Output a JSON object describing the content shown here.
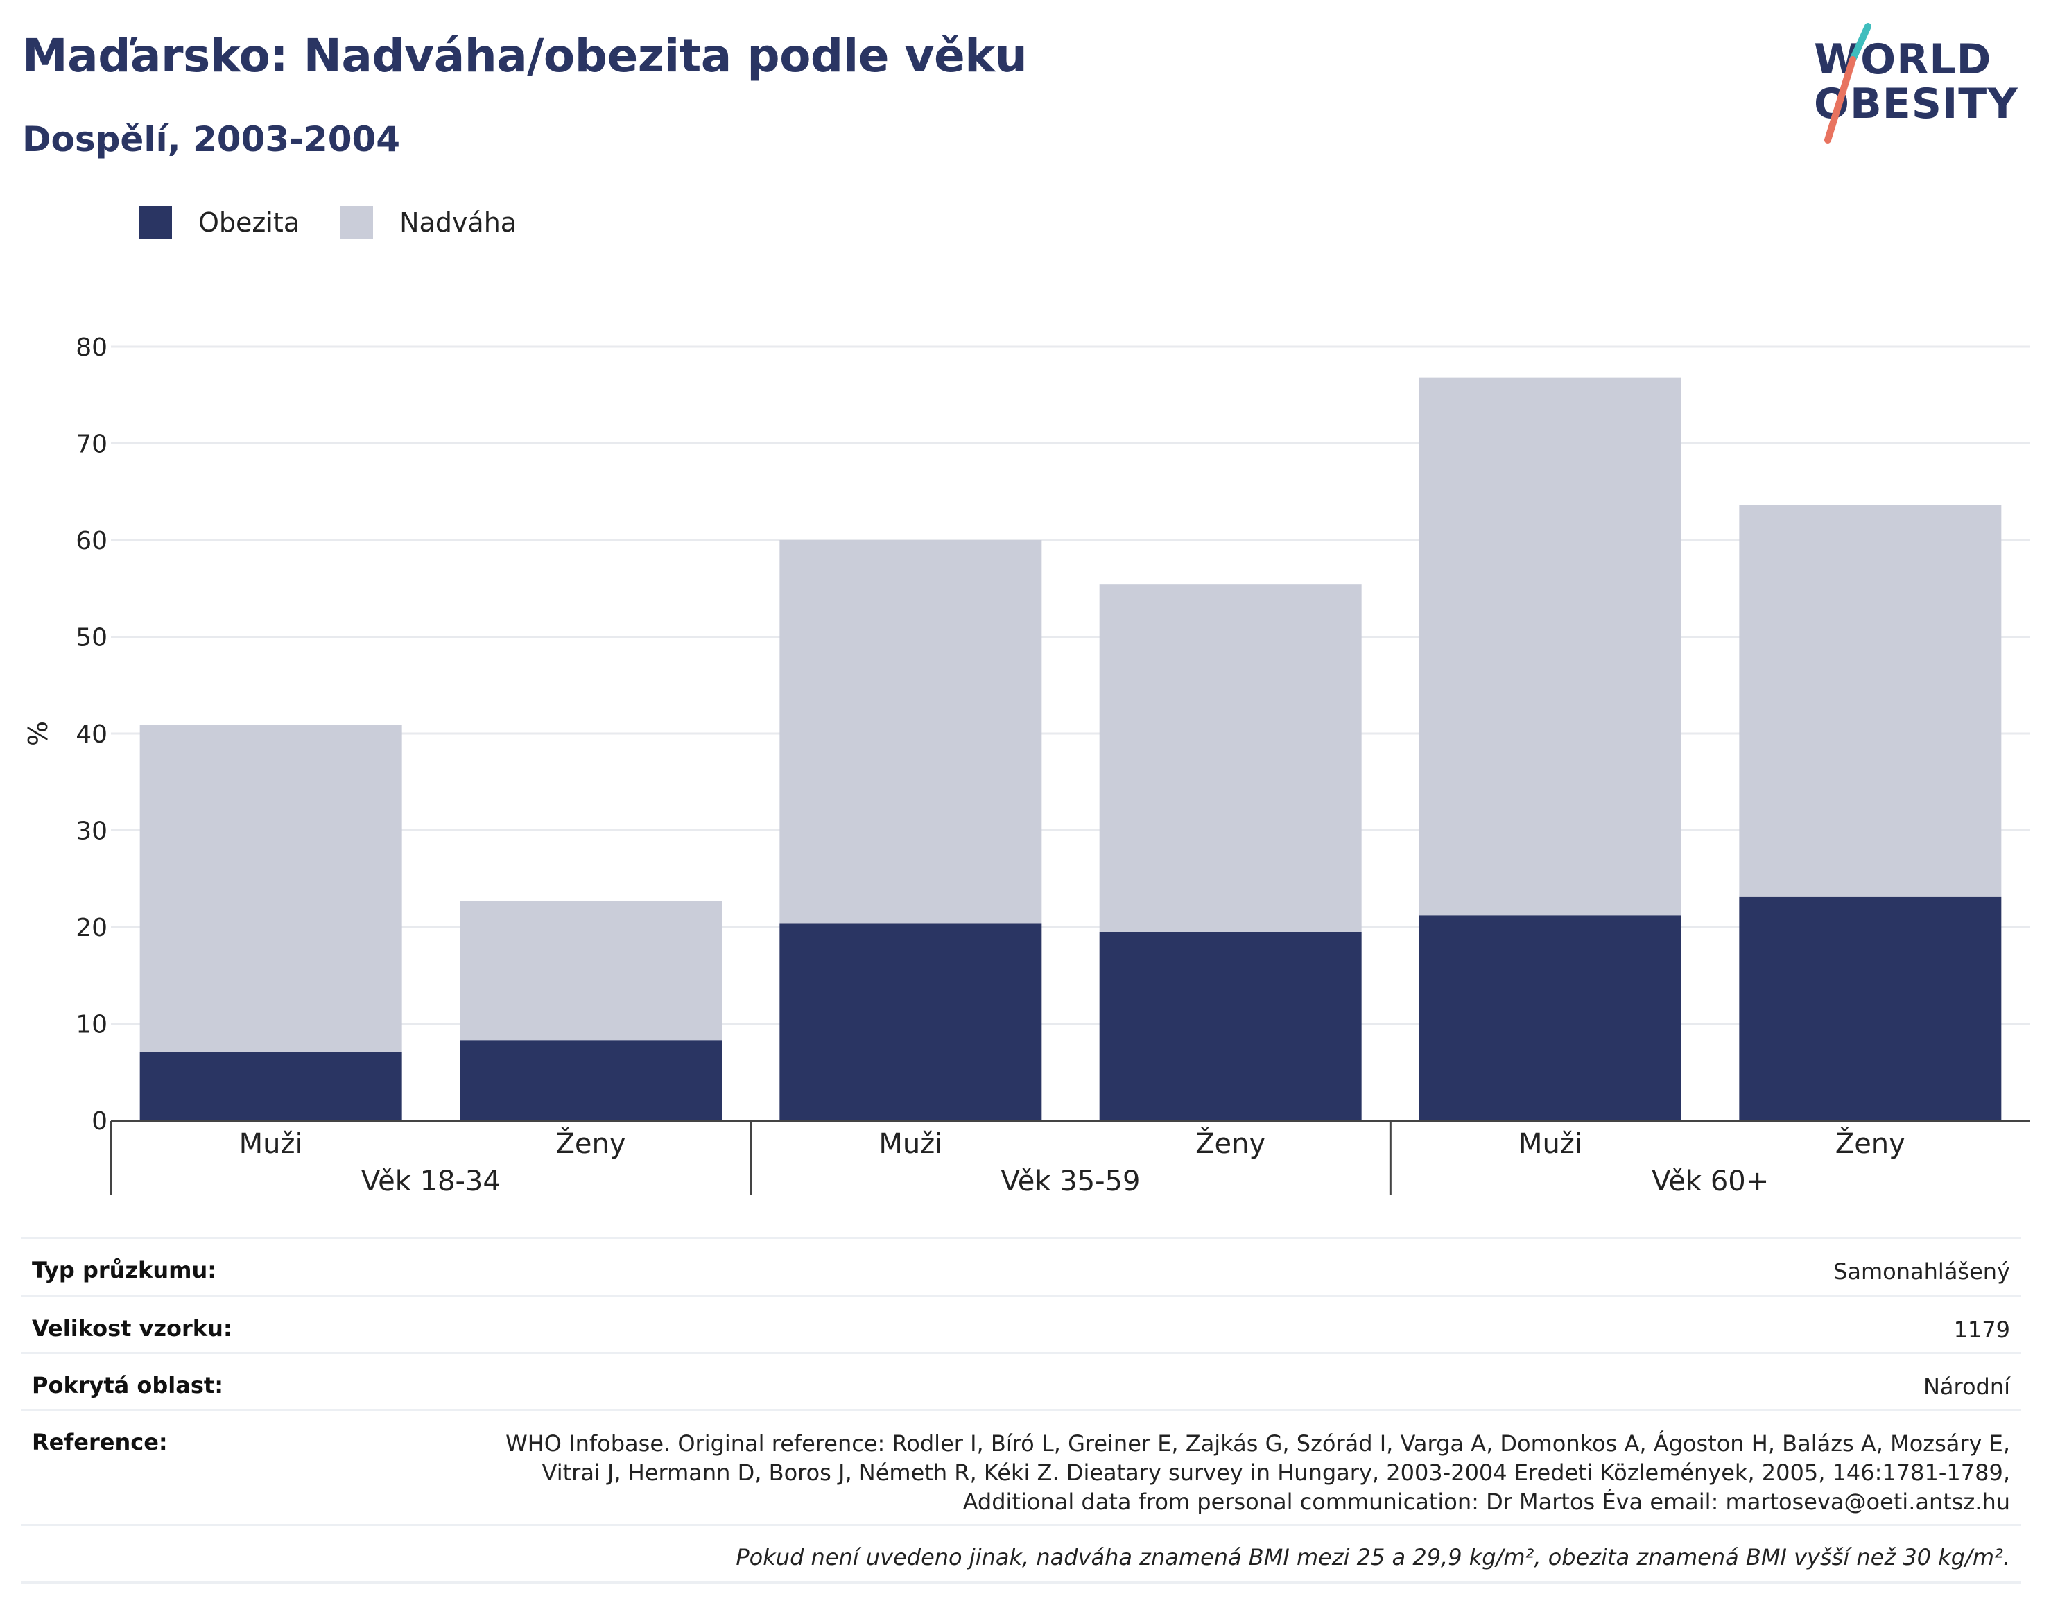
{
  "header": {
    "title": "Maďarsko: Nadváha/obezita podle věku",
    "subtitle": "Dospělí, 2003-2004"
  },
  "logo": {
    "line1": "WORLD",
    "line2": "OBESITY"
  },
  "legend": [
    {
      "label": "Obezita",
      "color": "#2a3563"
    },
    {
      "label": "Nadváha",
      "color": "#cacdd9"
    }
  ],
  "chart_data": {
    "type": "bar",
    "stacked": true,
    "ylabel": "%",
    "ylim": [
      0,
      80
    ],
    "yticks": [
      0,
      10,
      20,
      30,
      40,
      50,
      60,
      70,
      80
    ],
    "grid": true,
    "legend_position": "top-left",
    "groups": [
      "Věk 18-34",
      "Věk 35-59",
      "Věk 60+"
    ],
    "categories": [
      "Muži",
      "Ženy",
      "Muži",
      "Ženy",
      "Muži",
      "Ženy"
    ],
    "series": [
      {
        "name": "Obezita",
        "color": "#2a3563",
        "values": [
          7.1,
          8.3,
          20.4,
          19.5,
          21.2,
          23.1
        ]
      },
      {
        "name": "Nadváha",
        "color": "#cacdd9",
        "values": [
          33.8,
          14.4,
          39.6,
          35.9,
          55.6,
          40.5
        ]
      }
    ]
  },
  "info": {
    "survey_type_label": "Typ průzkumu:",
    "survey_type_value": "Samonahlášený",
    "sample_size_label": "Velikost vzorku:",
    "sample_size_value": "1179",
    "area_label": "Pokrytá oblast:",
    "area_value": "Národní",
    "reference_label": "Reference:",
    "reference_lines": [
      "WHO Infobase. Original reference: Rodler I, Bíró L, Greiner E, Zajkás G, Szórád I, Varga A, Domonkos A, Ágoston H, Balázs A, Mozsáry E,",
      "Vitrai J, Hermann D, Boros J, Németh R, Kéki Z. Dieatary survey in Hungary, 2003-2004 Eredeti Közlemények, 2005, 146:1781-1789,",
      "Additional data from personal communication: Dr Martos Éva email: martoseva@oeti.antsz.hu"
    ],
    "footnote": "Pokud není uvedeno jinak, nadváha znamená BMI mezi 25 a 29,9 kg/m², obezita znamená BMI vyšší než 30 kg/m²."
  }
}
